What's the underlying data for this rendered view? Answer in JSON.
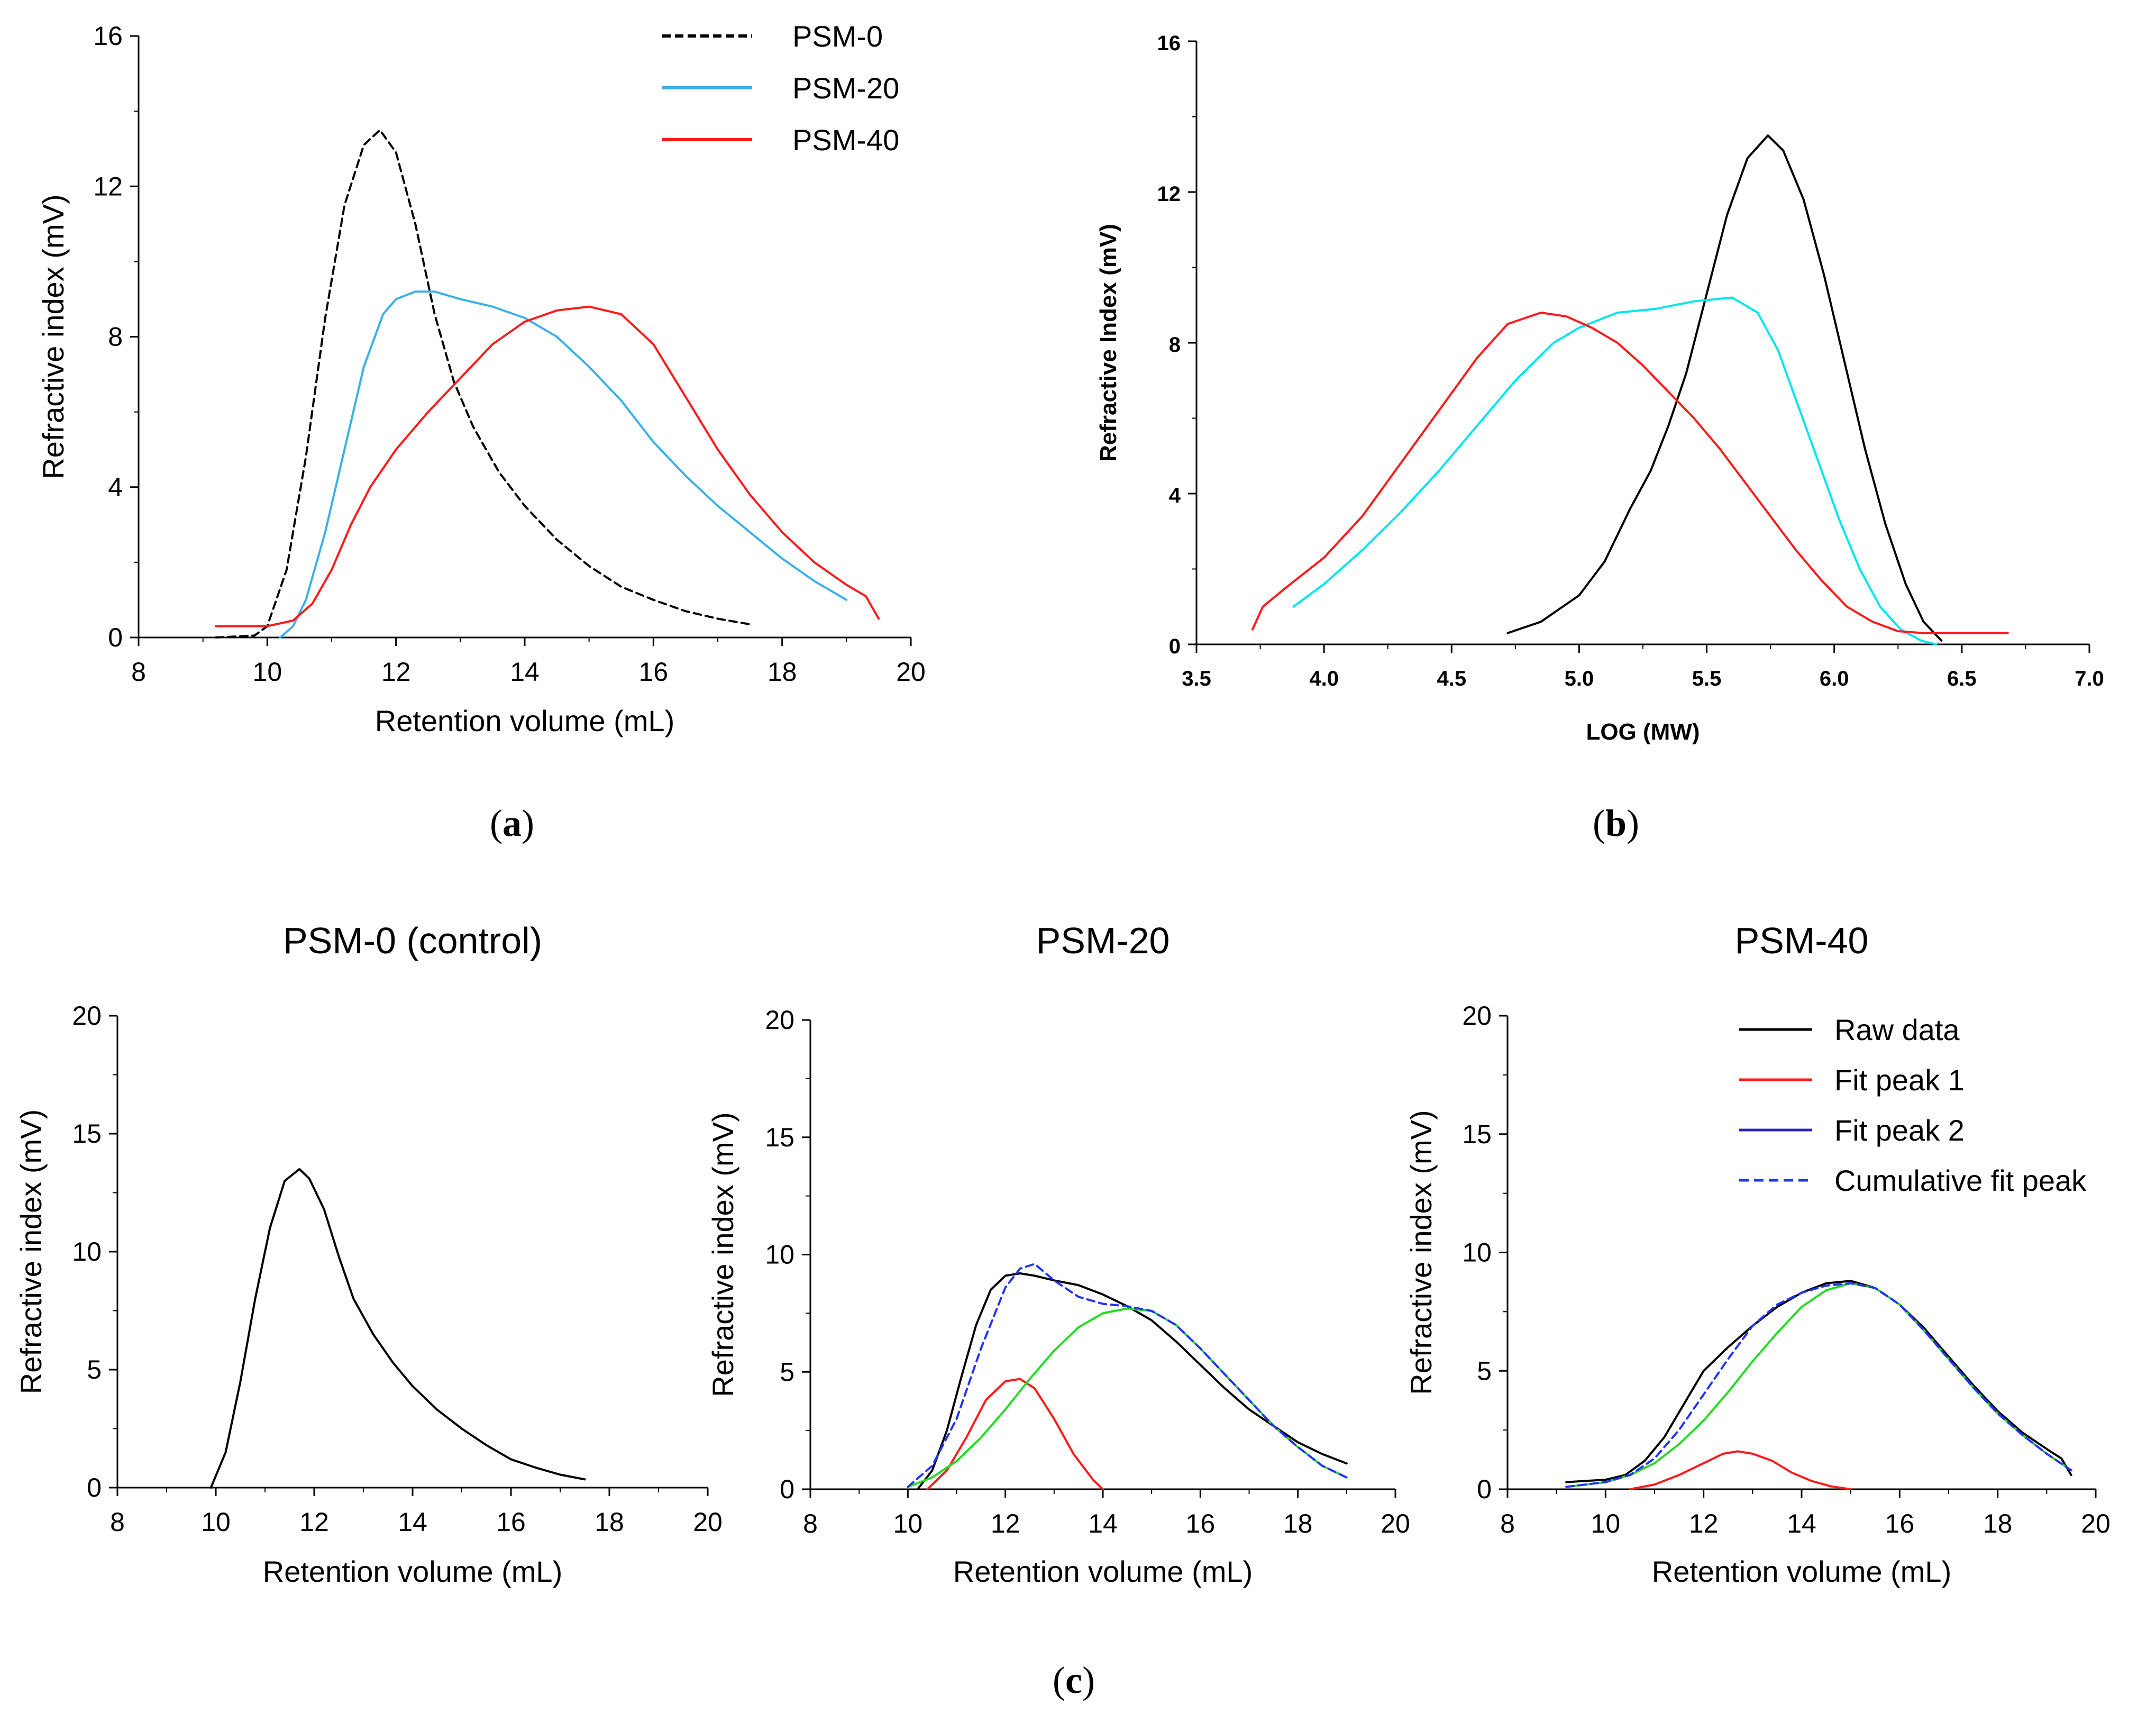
{
  "captions": [
    "(a)",
    "(b)",
    "(c)"
  ],
  "colors": {
    "psm0": "#000000",
    "psm20": "#3bb0e8",
    "psm40": "#ff1a1a",
    "psm20_b": "#00e5f0",
    "raw": "#000000",
    "fit1": "#ff1a1a",
    "fit2": "#22dd22",
    "fit2_legend": "#3020c0",
    "cumulative": "#2233ff"
  },
  "chart_data": [
    {
      "id": "a",
      "type": "line",
      "title": "",
      "xlabel": "Retention volume (mL)",
      "ylabel": "Refractive index (mV)",
      "xlim": [
        8,
        20
      ],
      "ylim": [
        0,
        16
      ],
      "xticks": [
        8,
        10,
        12,
        14,
        16,
        18,
        20
      ],
      "yticks": [
        0,
        4,
        8,
        12,
        16
      ],
      "legend_position": "top-right",
      "series": [
        {
          "name": "PSM-0",
          "style": "dashed",
          "color": "#000000",
          "x": [
            9.2,
            9.8,
            10.0,
            10.3,
            10.6,
            10.9,
            11.2,
            11.5,
            11.75,
            12.0,
            12.3,
            12.6,
            12.9,
            13.2,
            13.6,
            14.0,
            14.5,
            15.0,
            15.5,
            16.0,
            16.5,
            17.0,
            17.5
          ],
          "y": [
            0.0,
            0.05,
            0.3,
            1.8,
            4.8,
            8.5,
            11.5,
            13.1,
            13.5,
            12.9,
            11.0,
            8.6,
            6.8,
            5.6,
            4.4,
            3.5,
            2.6,
            1.9,
            1.35,
            1.0,
            0.7,
            0.5,
            0.35
          ]
        },
        {
          "name": "PSM-20",
          "style": "solid",
          "color": "#3bb0e8",
          "x": [
            10.2,
            10.4,
            10.6,
            10.9,
            11.2,
            11.5,
            11.8,
            12.0,
            12.3,
            12.6,
            13.0,
            13.5,
            14.0,
            14.5,
            15.0,
            15.5,
            16.0,
            16.5,
            17.0,
            17.5,
            18.0,
            18.5,
            19.0
          ],
          "y": [
            0.0,
            0.3,
            1.0,
            2.8,
            5.0,
            7.2,
            8.6,
            9.0,
            9.2,
            9.2,
            9.0,
            8.8,
            8.5,
            8.0,
            7.2,
            6.3,
            5.2,
            4.3,
            3.5,
            2.8,
            2.1,
            1.5,
            1.0
          ]
        },
        {
          "name": "PSM-40",
          "style": "solid",
          "color": "#ff1a1a",
          "x": [
            9.2,
            9.6,
            10.0,
            10.4,
            10.7,
            11.0,
            11.3,
            11.6,
            12.0,
            12.5,
            13.0,
            13.5,
            14.0,
            14.5,
            15.0,
            15.5,
            16.0,
            16.5,
            17.0,
            17.5,
            18.0,
            18.5,
            19.0,
            19.3,
            19.5
          ],
          "y": [
            0.3,
            0.3,
            0.3,
            0.45,
            0.9,
            1.8,
            3.0,
            4.0,
            5.0,
            6.0,
            6.9,
            7.8,
            8.4,
            8.7,
            8.8,
            8.6,
            7.8,
            6.4,
            5.0,
            3.8,
            2.8,
            2.0,
            1.4,
            1.1,
            0.5
          ]
        }
      ]
    },
    {
      "id": "b",
      "type": "line",
      "title": "",
      "xlabel": "LOG (MW)",
      "ylabel": "Refractive Index (mV)",
      "xlim": [
        3.5,
        7.0
      ],
      "ylim": [
        0,
        16
      ],
      "xticks": [
        3.5,
        4.0,
        4.5,
        5.0,
        5.5,
        6.0,
        6.5,
        7.0
      ],
      "xtick_labels": [
        "3.5",
        "4.0",
        "4.5",
        "5.0",
        "5.5",
        "6.0",
        "6.5",
        "7.0"
      ],
      "yticks": [
        0,
        4,
        8,
        12,
        16
      ],
      "series": [
        {
          "name": "PSM-0",
          "color": "#000000",
          "x": [
            4.72,
            4.85,
            5.0,
            5.1,
            5.2,
            5.28,
            5.35,
            5.42,
            5.5,
            5.58,
            5.66,
            5.74,
            5.8,
            5.88,
            5.96,
            6.04,
            6.12,
            6.2,
            6.28,
            6.35,
            6.42
          ],
          "y": [
            0.3,
            0.6,
            1.3,
            2.2,
            3.6,
            4.6,
            5.8,
            7.2,
            9.3,
            11.4,
            12.9,
            13.5,
            13.1,
            11.8,
            9.8,
            7.5,
            5.2,
            3.2,
            1.6,
            0.6,
            0.1
          ]
        },
        {
          "name": "PSM-20",
          "color": "#00e5f0",
          "x": [
            3.88,
            4.0,
            4.15,
            4.3,
            4.45,
            4.6,
            4.75,
            4.9,
            5.0,
            5.15,
            5.3,
            5.45,
            5.6,
            5.7,
            5.78,
            5.86,
            5.94,
            6.02,
            6.1,
            6.18,
            6.26,
            6.34,
            6.4
          ],
          "y": [
            1.0,
            1.6,
            2.5,
            3.5,
            4.6,
            5.8,
            7.0,
            8.0,
            8.4,
            8.8,
            8.9,
            9.1,
            9.2,
            8.8,
            7.8,
            6.3,
            4.8,
            3.3,
            2.0,
            1.0,
            0.4,
            0.1,
            0.0
          ]
        },
        {
          "name": "PSM-40",
          "color": "#ff1a1a",
          "x": [
            3.72,
            3.76,
            3.85,
            4.0,
            4.15,
            4.3,
            4.45,
            4.6,
            4.72,
            4.85,
            4.95,
            5.05,
            5.15,
            5.25,
            5.35,
            5.45,
            5.55,
            5.65,
            5.75,
            5.85,
            5.95,
            6.05,
            6.15,
            6.25,
            6.35,
            6.5,
            6.68
          ],
          "y": [
            0.4,
            1.0,
            1.5,
            2.3,
            3.4,
            4.8,
            6.2,
            7.6,
            8.5,
            8.8,
            8.7,
            8.4,
            8.0,
            7.4,
            6.7,
            6.0,
            5.2,
            4.3,
            3.4,
            2.5,
            1.7,
            1.0,
            0.6,
            0.35,
            0.3,
            0.3,
            0.3
          ]
        }
      ]
    },
    {
      "id": "c1",
      "type": "line",
      "title": "PSM-0 (control)",
      "xlabel": "Retention volume (mL)",
      "ylabel": "Refractive index (mV)",
      "xlim": [
        8,
        20
      ],
      "ylim": [
        0,
        20
      ],
      "xticks": [
        8,
        10,
        12,
        14,
        16,
        18,
        20
      ],
      "yticks": [
        0,
        5,
        10,
        15,
        20
      ],
      "series": [
        {
          "name": "Raw data",
          "color": "#000000",
          "style": "solid",
          "x": [
            9.9,
            10.2,
            10.5,
            10.8,
            11.1,
            11.4,
            11.7,
            11.9,
            12.2,
            12.5,
            12.8,
            13.2,
            13.6,
            14.0,
            14.5,
            15.0,
            15.5,
            16.0,
            16.5,
            17.0,
            17.5
          ],
          "y": [
            0.0,
            1.5,
            4.5,
            8.0,
            11.0,
            13.0,
            13.5,
            13.1,
            11.8,
            9.8,
            8.0,
            6.5,
            5.3,
            4.3,
            3.3,
            2.5,
            1.8,
            1.2,
            0.85,
            0.55,
            0.35
          ]
        }
      ]
    },
    {
      "id": "c2",
      "type": "line",
      "title": "PSM-20",
      "xlabel": "Retention volume (mL)",
      "ylabel": "Refractive index (mV)",
      "xlim": [
        8,
        20
      ],
      "ylim": [
        0,
        20
      ],
      "xticks": [
        8,
        10,
        12,
        14,
        16,
        18,
        20
      ],
      "yticks": [
        0,
        5,
        10,
        15,
        20
      ],
      "series": [
        {
          "name": "Raw data",
          "color": "#000000",
          "style": "solid",
          "x": [
            10.2,
            10.5,
            10.8,
            11.1,
            11.4,
            11.7,
            12.0,
            12.3,
            12.6,
            13.0,
            13.5,
            14.0,
            14.5,
            15.0,
            15.5,
            16.0,
            16.5,
            17.0,
            17.5,
            18.0,
            18.5,
            19.0
          ],
          "y": [
            0.0,
            0.8,
            2.5,
            4.8,
            7.0,
            8.5,
            9.1,
            9.2,
            9.1,
            8.9,
            8.7,
            8.3,
            7.8,
            7.2,
            6.3,
            5.3,
            4.3,
            3.4,
            2.7,
            2.0,
            1.5,
            1.1
          ]
        },
        {
          "name": "Fit peak 1",
          "color": "#ff1a1a",
          "style": "solid",
          "x": [
            10.4,
            10.8,
            11.2,
            11.6,
            12.0,
            12.3,
            12.6,
            13.0,
            13.4,
            13.8,
            14.0
          ],
          "y": [
            0.0,
            0.8,
            2.2,
            3.8,
            4.6,
            4.7,
            4.3,
            3.0,
            1.5,
            0.4,
            0.0
          ]
        },
        {
          "name": "Fit peak 2",
          "color": "#22dd22",
          "style": "solid",
          "x": [
            10.0,
            10.5,
            11.0,
            11.5,
            12.0,
            12.5,
            13.0,
            13.5,
            14.0,
            14.5,
            15.0,
            15.5,
            16.0,
            16.5,
            17.0,
            17.5,
            18.0,
            18.5,
            19.0
          ],
          "y": [
            0.1,
            0.5,
            1.2,
            2.2,
            3.4,
            4.7,
            5.9,
            6.9,
            7.5,
            7.7,
            7.6,
            7.0,
            6.0,
            4.9,
            3.8,
            2.7,
            1.8,
            1.0,
            0.5
          ]
        },
        {
          "name": "Cumulative fit peak",
          "color": "#2233ff",
          "style": "dashed",
          "x": [
            10.0,
            10.5,
            11.0,
            11.5,
            12.0,
            12.3,
            12.6,
            13.0,
            13.5,
            14.0,
            14.5,
            15.0,
            15.5,
            16.0,
            16.5,
            17.0,
            17.5,
            18.0,
            18.5,
            19.0
          ],
          "y": [
            0.1,
            1.0,
            3.0,
            6.0,
            8.6,
            9.4,
            9.6,
            8.9,
            8.2,
            7.9,
            7.8,
            7.6,
            7.0,
            6.0,
            4.9,
            3.8,
            2.7,
            1.8,
            1.0,
            0.5
          ]
        }
      ]
    },
    {
      "id": "c3",
      "type": "line",
      "title": "PSM-40",
      "xlabel": "Retention volume (mL)",
      "ylabel": "Refractive index (mV)",
      "xlim": [
        8,
        20
      ],
      "ylim": [
        0,
        20
      ],
      "xticks": [
        8,
        10,
        12,
        14,
        16,
        18,
        20
      ],
      "yticks": [
        0,
        5,
        10,
        15,
        20
      ],
      "legend_position": "top-right",
      "legend": [
        {
          "label": "Raw data",
          "color": "#000000",
          "style": "solid"
        },
        {
          "label": "Fit peak 1",
          "color": "#ff1a1a",
          "style": "solid"
        },
        {
          "label": "Fit peak 2",
          "color": "#3020c0",
          "style": "solid"
        },
        {
          "label": "Cumulative fit peak",
          "color": "#2233ff",
          "style": "dashed"
        }
      ],
      "series": [
        {
          "name": "Raw data",
          "color": "#000000",
          "style": "solid",
          "x": [
            9.2,
            9.6,
            10.0,
            10.4,
            10.8,
            11.2,
            11.6,
            12.0,
            12.5,
            13.0,
            13.5,
            14.0,
            14.5,
            15.0,
            15.5,
            16.0,
            16.5,
            17.0,
            17.5,
            18.0,
            18.5,
            19.0,
            19.3,
            19.5
          ],
          "y": [
            0.3,
            0.35,
            0.4,
            0.6,
            1.2,
            2.2,
            3.6,
            5.0,
            6.0,
            6.9,
            7.7,
            8.3,
            8.7,
            8.8,
            8.5,
            7.8,
            6.8,
            5.6,
            4.4,
            3.3,
            2.4,
            1.7,
            1.3,
            0.6
          ]
        },
        {
          "name": "Fit peak 1",
          "color": "#ff1a1a",
          "style": "solid",
          "x": [
            10.5,
            11.0,
            11.5,
            12.0,
            12.4,
            12.7,
            13.0,
            13.4,
            13.8,
            14.2,
            14.6,
            15.0
          ],
          "y": [
            0.0,
            0.2,
            0.6,
            1.1,
            1.5,
            1.6,
            1.5,
            1.2,
            0.7,
            0.35,
            0.12,
            0.0
          ]
        },
        {
          "name": "Fit peak 2",
          "color": "#22dd22",
          "style": "solid",
          "x": [
            9.2,
            10.0,
            10.5,
            11.0,
            11.5,
            12.0,
            12.5,
            13.0,
            13.5,
            14.0,
            14.5,
            15.0,
            15.5,
            16.0,
            16.5,
            17.0,
            17.5,
            18.0,
            18.5,
            19.0,
            19.5
          ],
          "y": [
            0.1,
            0.3,
            0.6,
            1.1,
            1.9,
            2.9,
            4.1,
            5.4,
            6.6,
            7.7,
            8.4,
            8.7,
            8.5,
            7.8,
            6.7,
            5.5,
            4.3,
            3.2,
            2.3,
            1.5,
            0.8
          ]
        },
        {
          "name": "Cumulative fit peak",
          "color": "#2233ff",
          "style": "dashed",
          "x": [
            9.2,
            10.0,
            10.5,
            11.0,
            11.5,
            12.0,
            12.5,
            13.0,
            13.5,
            14.0,
            14.5,
            15.0,
            15.5,
            16.0,
            16.5,
            17.0,
            17.5,
            18.0,
            18.5,
            19.0,
            19.5
          ],
          "y": [
            0.1,
            0.3,
            0.6,
            1.3,
            2.5,
            4.0,
            5.5,
            6.9,
            7.8,
            8.3,
            8.6,
            8.7,
            8.5,
            7.8,
            6.7,
            5.5,
            4.3,
            3.2,
            2.3,
            1.5,
            0.8
          ]
        }
      ]
    }
  ]
}
